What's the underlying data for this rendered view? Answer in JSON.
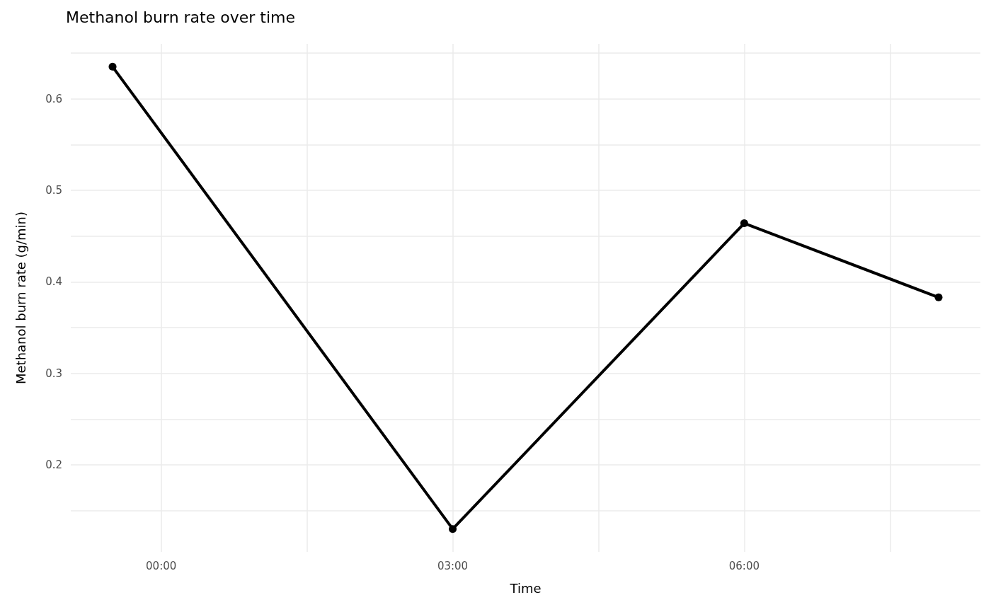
{
  "chart_data": {
    "type": "line",
    "title": "Methanol burn rate over time",
    "xlabel": "Time",
    "ylabel": "Methanol burn rate (g/min)",
    "x": [
      -0.5,
      3,
      6,
      8
    ],
    "series": [
      {
        "color": "#000000",
        "values": [
          0.635,
          0.13,
          0.464,
          0.383
        ]
      }
    ],
    "xlim": [
      -0.93,
      8.43
    ],
    "xticks": [
      {
        "value": 0,
        "label": "00:00"
      },
      {
        "value": 1.5,
        "label": null
      },
      {
        "value": 3,
        "label": "03:00"
      },
      {
        "value": 4.5,
        "label": null
      },
      {
        "value": 6,
        "label": "06:00"
      },
      {
        "value": 7.5,
        "label": null
      }
    ],
    "ylim": [
      0.105,
      0.66
    ],
    "yticks": [
      {
        "value": 0.15,
        "label": null
      },
      0.2,
      {
        "value": 0.25,
        "label": null
      },
      0.3,
      {
        "value": 0.35,
        "label": null
      },
      0.4,
      {
        "value": 0.45,
        "label": null
      },
      0.5,
      {
        "value": 0.55,
        "label": null
      },
      0.6,
      {
        "value": 0.65,
        "label": null
      }
    ],
    "grid": true,
    "marker": "circle",
    "line_style": "solid"
  }
}
